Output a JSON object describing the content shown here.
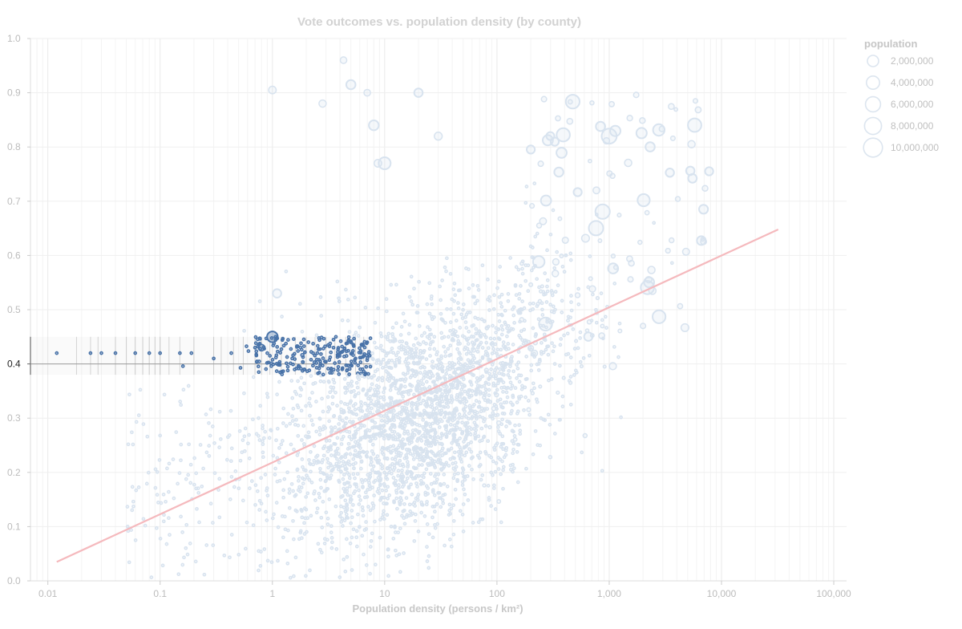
{
  "chart_data": {
    "type": "scatter",
    "title": "Vote outcomes vs. population density (by county)",
    "xlabel": "Population density (persons / km²)",
    "ylabel": "",
    "x_scale": "log",
    "xlim": [
      0.007,
      130000
    ],
    "ylim": [
      0,
      1
    ],
    "grid": true,
    "x_ticks": [
      {
        "value": 0.01,
        "label": "0.01"
      },
      {
        "value": 0.1,
        "label": "0.1"
      },
      {
        "value": 1,
        "label": "1"
      },
      {
        "value": 10,
        "label": "10"
      },
      {
        "value": 100,
        "label": "100"
      },
      {
        "value": 1000,
        "label": "1,000"
      },
      {
        "value": 10000,
        "label": "10,000"
      },
      {
        "value": 100000,
        "label": "100,000"
      }
    ],
    "y_ticks": [
      {
        "value": 0,
        "label": "0.0"
      },
      {
        "value": 0.1,
        "label": "0.1"
      },
      {
        "value": 0.2,
        "label": "0.2"
      },
      {
        "value": 0.3,
        "label": "0.3"
      },
      {
        "value": 0.4,
        "label": "0.4"
      },
      {
        "value": 0.5,
        "label": "0.5"
      },
      {
        "value": 0.6,
        "label": "0.6"
      },
      {
        "value": 0.7,
        "label": "0.7"
      },
      {
        "value": 0.8,
        "label": "0.8"
      },
      {
        "value": 0.9,
        "label": "0.9"
      },
      {
        "value": 1.0,
        "label": "1.0"
      }
    ],
    "active_y_tick": 0.4,
    "brush": {
      "x_range": [
        0.007,
        7.5
      ],
      "y_range": [
        0.38,
        0.45
      ]
    },
    "trend_line": {
      "x1": 0.012,
      "y1": 0.035,
      "x2": 32000,
      "y2": 0.648,
      "color": "#f5b9bd"
    },
    "colors": {
      "point": "#d8e3ef",
      "point_selected": "#4872a8",
      "grid": "#eeeeee",
      "trend": "#f5b9bd"
    },
    "legend": {
      "title": "population",
      "position": "top-right",
      "entries": [
        {
          "value": 2000000,
          "label": "2,000,000"
        },
        {
          "value": 4000000,
          "label": "4,000,000"
        },
        {
          "value": 6000000,
          "label": "6,000,000"
        },
        {
          "value": 8000000,
          "label": "8,000,000"
        },
        {
          "value": 10000000,
          "label": "10,000,000"
        }
      ]
    },
    "highlighted_points": [
      {
        "x": 4.3,
        "y": 0.96,
        "pop": 1500000
      },
      {
        "x": 7.0,
        "y": 0.9,
        "pop": 1500000
      }
    ],
    "point_series": [
      [
        0.012,
        0.42,
        20000
      ],
      [
        0.024,
        0.42,
        15000
      ],
      [
        0.03,
        0.42,
        15000
      ],
      [
        0.04,
        0.42,
        25000
      ],
      [
        0.06,
        0.42,
        15000
      ],
      [
        0.08,
        0.42,
        20000
      ],
      [
        0.1,
        0.42,
        25000
      ],
      [
        0.15,
        0.42,
        30000
      ],
      [
        0.19,
        0.42,
        25000
      ],
      [
        0.3,
        0.41,
        40000
      ],
      [
        0.43,
        0.42,
        40000
      ],
      [
        0.7,
        0.43,
        60000
      ],
      [
        0.9,
        0.42,
        50000
      ],
      [
        1.5,
        0.41,
        70000
      ],
      [
        2.3,
        0.42,
        100000
      ],
      [
        3.5,
        0.43,
        90000
      ],
      [
        5.5,
        0.41,
        110000
      ],
      [
        7.0,
        0.44,
        90000
      ],
      [
        1,
        0.905,
        2000000
      ],
      [
        5,
        0.915,
        3000000
      ],
      [
        8,
        0.84,
        3500000
      ],
      [
        10,
        0.77,
        5000000
      ],
      [
        20,
        0.9,
        2500000
      ],
      [
        30,
        0.82,
        2200000
      ],
      [
        2.8,
        0.88,
        1800000
      ],
      [
        8.7,
        0.77,
        2000000
      ],
      [
        1.1,
        0.53,
        2500000
      ],
      [
        1.0,
        0.45,
        4000000
      ],
      [
        0.8,
        0.43,
        1500000
      ],
      [
        2000,
        0.47,
        1000000
      ],
      [
        1000,
        0.82,
        8000000
      ]
    ]
  }
}
